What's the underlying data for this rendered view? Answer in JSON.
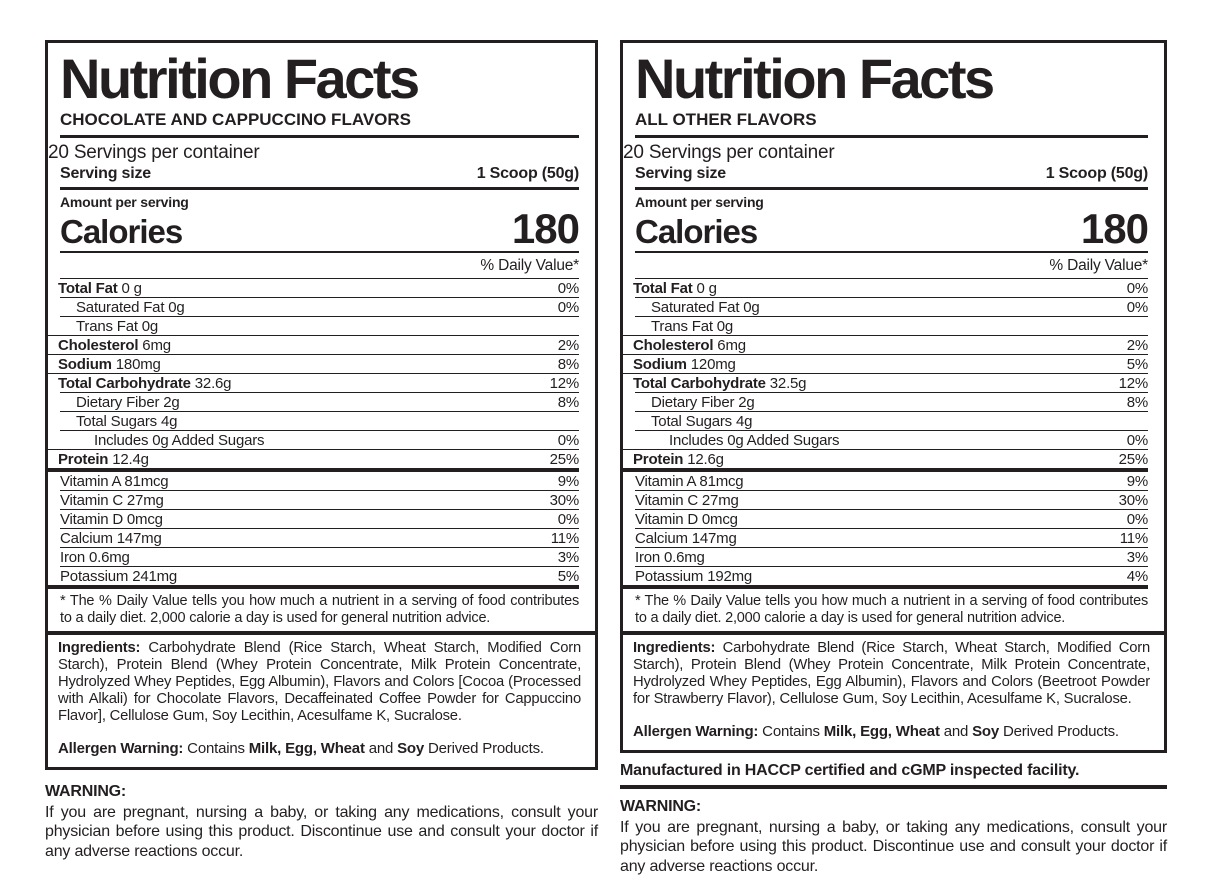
{
  "left": {
    "title": "Nutrition Facts",
    "subtitle": "CHOCOLATE AND CAPPUCCINO FLAVORS",
    "servings_per_container": "20 Servings per container",
    "serving_size_label": "Serving size",
    "serving_size_value": "1 Scoop (50g)",
    "amount_per_serving_label": "Amount per serving",
    "calories_label": "Calories",
    "calories_value": "180",
    "daily_value_header": "% Daily Value*",
    "rows": [
      {
        "name": "Total Fat",
        "amount": " 0 g",
        "dv": "0%"
      },
      {
        "name": "Saturated Fat 0g",
        "amount": "",
        "dv": "0%"
      },
      {
        "name": "Trans Fat 0g",
        "amount": "",
        "dv": ""
      },
      {
        "name": "Cholesterol",
        "amount": " 6mg",
        "dv": "2%"
      },
      {
        "name": "Sodium",
        "amount": " 180mg",
        "dv": "8%"
      },
      {
        "name": "Total Carbohydrate",
        "amount": " 32.6g",
        "dv": "12%"
      },
      {
        "name": "Dietary Fiber 2g",
        "amount": "",
        "dv": "8%"
      },
      {
        "name": "Total Sugars 4g",
        "amount": "",
        "dv": ""
      },
      {
        "name": "Includes 0g Added Sugars",
        "amount": "",
        "dv": "0%"
      },
      {
        "name": "Protein",
        "amount": " 12.4g",
        "dv": "25%"
      },
      {
        "name": "Vitamin A 81mcg",
        "amount": "",
        "dv": "9%"
      },
      {
        "name": "Vitamin C 27mg",
        "amount": "",
        "dv": "30%"
      },
      {
        "name": "Vitamin D 0mcg",
        "amount": "",
        "dv": "0%"
      },
      {
        "name": "Calcium 147mg",
        "amount": "",
        "dv": "11%"
      },
      {
        "name": "Iron 0.6mg",
        "amount": "",
        "dv": "3%"
      },
      {
        "name": "Potassium 241mg",
        "amount": "",
        "dv": "5%"
      }
    ],
    "footnote": "* The % Daily Value tells you how much a nutrient in a serving of food contributes to a daily diet. 2,000 calorie a day is used for general nutrition advice.",
    "ingredients_label": "Ingredients:",
    "ingredients_text": " Carbohydrate Blend (Rice Starch, Wheat Starch, Modified Corn Starch), Protein Blend (Whey Protein Concentrate, Milk Protein Concentrate, Hydrolyzed Whey Peptides, Egg Albumin), Flavors and Colors [Cocoa (Processed with Alkali) for Chocolate Flavors, Decaffeinated Coffee Powder for Cappuccino Flavor], Cellulose Gum, Soy Lecithin, Acesulfame K, Sucralose.",
    "allergen": {
      "label": "Allergen Warning:",
      "t1": " Contains ",
      "b1": "Milk, Egg, Wheat",
      "t2": " and ",
      "b2": "Soy",
      "t3": " Derived Products."
    },
    "warning_label": "WARNING:",
    "warning_text": "If you are pregnant, nursing a baby, or taking any medications, consult your physician before using this product. Discontinue use and consult your doctor if any adverse reactions occur."
  },
  "right": {
    "title": "Nutrition Facts",
    "subtitle": "ALL OTHER FLAVORS",
    "servings_per_container": "20 Servings per container",
    "serving_size_label": "Serving size",
    "serving_size_value": "1 Scoop (50g)",
    "amount_per_serving_label": "Amount per serving",
    "calories_label": "Calories",
    "calories_value": "180",
    "daily_value_header": "% Daily Value*",
    "rows": [
      {
        "name": "Total Fat",
        "amount": " 0 g",
        "dv": "0%"
      },
      {
        "name": "Saturated Fat 0g",
        "amount": "",
        "dv": "0%"
      },
      {
        "name": "Trans Fat 0g",
        "amount": "",
        "dv": ""
      },
      {
        "name": "Cholesterol",
        "amount": " 6mg",
        "dv": "2%"
      },
      {
        "name": "Sodium",
        "amount": " 120mg",
        "dv": "5%"
      },
      {
        "name": "Total Carbohydrate",
        "amount": " 32.5g",
        "dv": "12%"
      },
      {
        "name": "Dietary Fiber 2g",
        "amount": "",
        "dv": "8%"
      },
      {
        "name": "Total Sugars 4g",
        "amount": "",
        "dv": ""
      },
      {
        "name": "Includes 0g Added Sugars",
        "amount": "",
        "dv": "0%"
      },
      {
        "name": "Protein",
        "amount": " 12.6g",
        "dv": "25%"
      },
      {
        "name": "Vitamin A 81mcg",
        "amount": "",
        "dv": "9%"
      },
      {
        "name": "Vitamin C 27mg",
        "amount": "",
        "dv": "30%"
      },
      {
        "name": "Vitamin D 0mcg",
        "amount": "",
        "dv": "0%"
      },
      {
        "name": "Calcium 147mg",
        "amount": "",
        "dv": "11%"
      },
      {
        "name": "Iron 0.6mg",
        "amount": "",
        "dv": "3%"
      },
      {
        "name": "Potassium 192mg",
        "amount": "",
        "dv": "4%"
      }
    ],
    "footnote": "* The % Daily Value tells you how much a nutrient in a serving of food contributes to a daily diet. 2,000 calorie a day is used for general nutrition advice.",
    "ingredients_label": "Ingredients:",
    "ingredients_text": " Carbohydrate Blend (Rice Starch, Wheat Starch, Modified Corn Starch), Protein Blend (Whey Protein Concentrate, Milk Protein Concentrate, Hydrolyzed Whey Peptides, Egg Albumin), Flavors and Colors (Beetroot Powder for Strawberry Flavor), Cellulose Gum, Soy Lecithin, Acesulfame K, Sucralose.",
    "allergen": {
      "label": "Allergen Warning:",
      "t1": " Contains ",
      "b1": "Milk, Egg, Wheat",
      "t2": " and ",
      "b2": "Soy",
      "t3": " Derived Products."
    },
    "manufactured_note": "Manufactured in HACCP certified and cGMP inspected facility.",
    "warning_label": "WARNING:",
    "warning_text": "If you are pregnant, nursing a baby, or taking any medications, consult your physician before using this product. Discontinue use and consult your doctor if any adverse reactions occur."
  },
  "colors": {
    "ink": "#231f20",
    "background": "#ffffff"
  }
}
